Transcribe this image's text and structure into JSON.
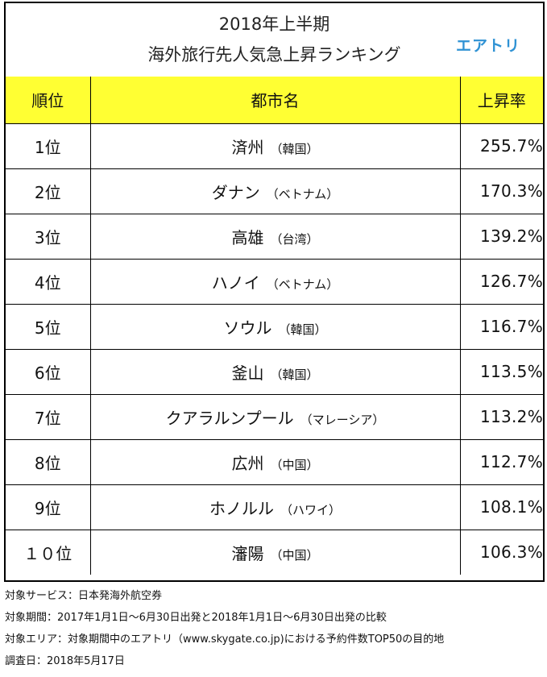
{
  "title": {
    "line1": "2018年上半期",
    "line2": "海外旅行先人気急上昇ランキング"
  },
  "brand": "エアトリ",
  "table": {
    "headers": {
      "rank": "順位",
      "city": "都市名",
      "rate": "上昇率"
    },
    "rows": [
      {
        "rank": "1位",
        "city": "済州",
        "country": "（韓国）",
        "rate": "255.7%"
      },
      {
        "rank": "2位",
        "city": "ダナン",
        "country": "（ベトナム）",
        "rate": "170.3%"
      },
      {
        "rank": "3位",
        "city": "高雄",
        "country": "（台湾）",
        "rate": "139.2%"
      },
      {
        "rank": "4位",
        "city": "ハノイ",
        "country": "（ベトナム）",
        "rate": "126.7%"
      },
      {
        "rank": "5位",
        "city": "ソウル",
        "country": "（韓国）",
        "rate": "116.7%"
      },
      {
        "rank": "6位",
        "city": "釜山",
        "country": "（韓国）",
        "rate": "113.5%"
      },
      {
        "rank": "7位",
        "city": "クアラルンプール",
        "country": "（マレーシア）",
        "rate": "113.2%"
      },
      {
        "rank": "8位",
        "city": "広州",
        "country": "（中国）",
        "rate": "112.7%"
      },
      {
        "rank": "9位",
        "city": "ホノルル",
        "country": "（ハワイ）",
        "rate": "108.1%"
      },
      {
        "rank": "１０位",
        "city": "瀋陽",
        "country": "（中国）",
        "rate": "106.3%"
      }
    ]
  },
  "footnotes": [
    "対象サービス：日本発海外航空券",
    "対象期間：2017年1月1日～6月30日出発と2018年1月1日～6月30日出発の比較",
    "対象エリア：対象期間中のエアトリ（www.skygate.co.jp)における予約件数TOP50の目的地",
    "調査日：2018年5月17日"
  ],
  "colors": {
    "header_bg": "#ffff33",
    "brand": "#2f92d4",
    "border": "#000000"
  }
}
